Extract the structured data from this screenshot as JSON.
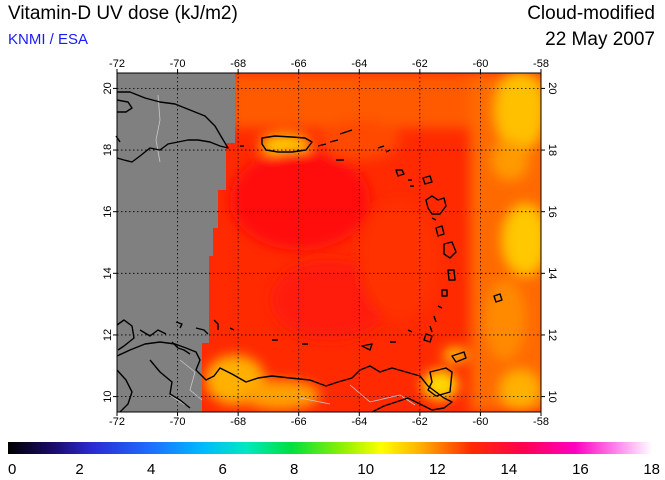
{
  "header": {
    "title": "Vitamin-D UV dose (kJ/m2)",
    "credit": "KNMI / ESA",
    "product": "Cloud-modified",
    "date": "22 May 2007"
  },
  "map": {
    "lon_range": [
      -72,
      -58
    ],
    "lat_range": [
      9.5,
      20.5
    ],
    "lon_ticks": [
      -72,
      -70,
      -68,
      -66,
      -64,
      -62,
      -60,
      -58
    ],
    "lon_tick_labels": [
      "-72",
      "-70",
      "-68",
      "-66",
      "-64",
      "-62",
      "-60",
      "-58"
    ],
    "lat_ticks": [
      10,
      12,
      14,
      16,
      18,
      20
    ],
    "lat_tick_labels": [
      "10",
      "12",
      "14",
      "16",
      "18",
      "20"
    ],
    "grid": "dotted",
    "no_data_color": "#808080",
    "coastline_color": "#000000",
    "border_color": "#c8c8c8"
  },
  "colorbar": {
    "min": 0,
    "max": 18,
    "tick_values": [
      0,
      2,
      4,
      6,
      8,
      10,
      12,
      14,
      16,
      18
    ],
    "tick_labels": [
      "0",
      "2",
      "4",
      "6",
      "8",
      "10",
      "12",
      "14",
      "16",
      "18"
    ],
    "colors": [
      "#000000",
      "#2a0a8a",
      "#2a2af0",
      "#00b0ff",
      "#00e0c0",
      "#00e000",
      "#a0f000",
      "#ffff00",
      "#ffb000",
      "#ff3000",
      "#ff0060",
      "#ff00c0",
      "#ff90ff",
      "#ffffff"
    ]
  }
}
